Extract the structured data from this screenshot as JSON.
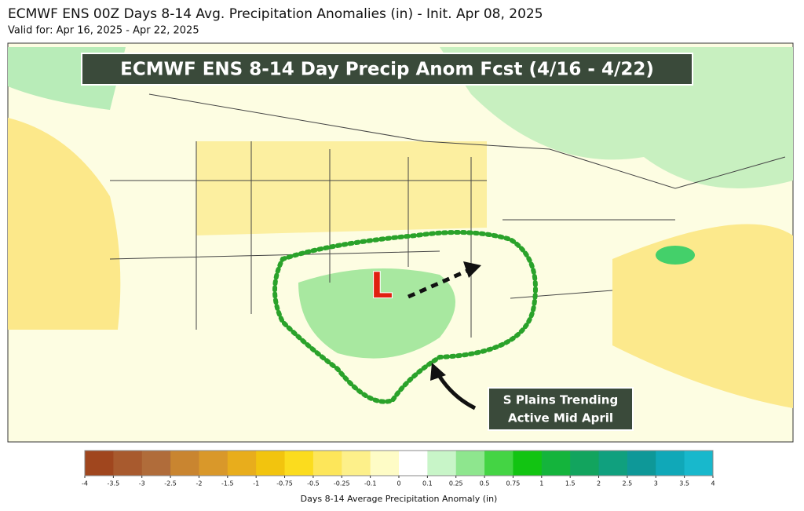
{
  "header": {
    "title": "ECMWF ENS 00Z Days 8-14 Avg. Precipitation Anomalies (in) - Init. Apr 08, 2025",
    "subtitle": "Valid for: Apr 16, 2025 - Apr 22, 2025"
  },
  "map": {
    "banner": "ECMWF ENS 8-14 Day Precip Anom Fcst (4/16 - 4/22)",
    "low_label": "L",
    "annotation": [
      "S Plains Trending",
      "Active Mid April"
    ]
  },
  "colorbar": {
    "label": "Days 8-14 Average Precipitation Anomaly (in)",
    "ticks": [
      -4,
      -3.5,
      -3,
      -2.5,
      -2,
      -1.5,
      -1,
      -0.75,
      -0.5,
      -0.25,
      -0.1,
      0,
      0.1,
      0.25,
      0.5,
      0.75,
      1,
      1.5,
      2,
      2.5,
      3,
      3.5,
      4
    ],
    "colors": [
      "#a0461e",
      "#a85a2e",
      "#b06c3a",
      "#c98530",
      "#d9982a",
      "#e8ad1c",
      "#f2c40e",
      "#fbdc1e",
      "#fde65a",
      "#fdf08a",
      "#fefcc6",
      "#ffffff",
      "#ffffff",
      "#c8f5c8",
      "#8ee68e",
      "#44d444",
      "#12c412",
      "#14b43c",
      "#12a45e",
      "#10a07e",
      "#0e9898",
      "#10a8b8",
      "#18b8cc"
    ]
  }
}
